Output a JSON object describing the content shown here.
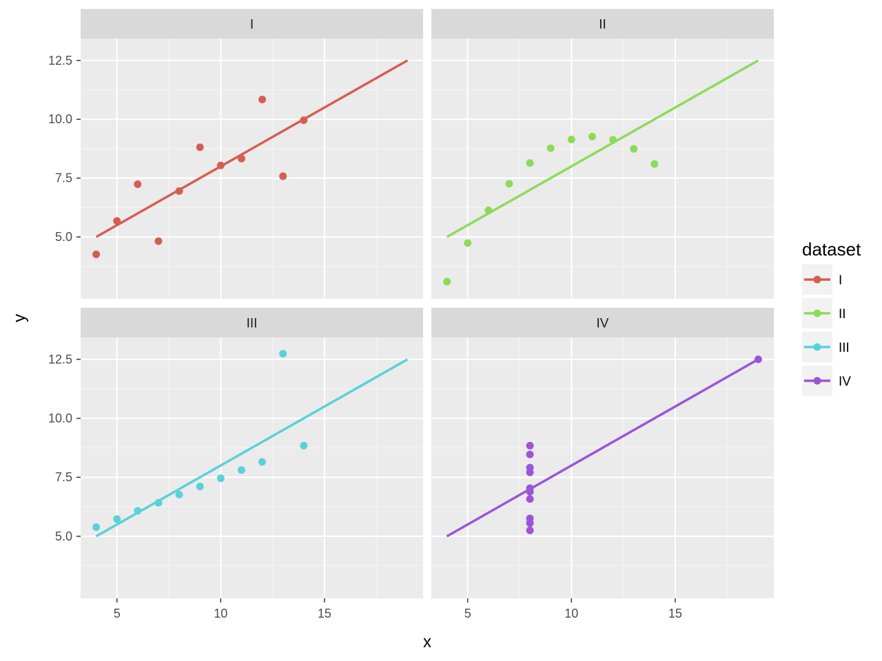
{
  "chart_data": {
    "type": "scatter",
    "facet_layout": "2x2",
    "x_label": "x",
    "y_label": "y",
    "xlim": [
      3.25,
      19.75
    ],
    "ylim": [
      2.37,
      13.43
    ],
    "x_ticks": [
      5,
      10,
      15
    ],
    "x_tick_labels": [
      "5",
      "10",
      "15"
    ],
    "y_ticks": [
      5.0,
      7.5,
      10.0,
      12.5
    ],
    "y_tick_labels": [
      "5.0",
      "7.5",
      "10.0",
      "12.5"
    ],
    "grid": true,
    "legend": {
      "title": "dataset",
      "placement": "right",
      "entries": [
        "I",
        "II",
        "III",
        "IV"
      ]
    },
    "panels": [
      {
        "name": "I",
        "color": "#D55E52",
        "x": [
          10,
          8,
          13,
          9,
          11,
          14,
          6,
          4,
          12,
          7,
          5
        ],
        "y": [
          8.04,
          6.95,
          7.58,
          8.81,
          8.33,
          9.96,
          7.24,
          4.26,
          10.84,
          4.82,
          5.68
        ],
        "fit_line": {
          "x": [
            4,
            19
          ],
          "y": [
            5.0,
            12.5
          ]
        }
      },
      {
        "name": "II",
        "color": "#8CDB58",
        "x": [
          10,
          8,
          13,
          9,
          11,
          14,
          6,
          4,
          12,
          7,
          5
        ],
        "y": [
          9.14,
          8.14,
          8.74,
          8.77,
          9.26,
          8.1,
          6.13,
          3.1,
          9.13,
          7.26,
          4.74
        ],
        "fit_line": {
          "x": [
            4,
            19
          ],
          "y": [
            5.0,
            12.5
          ]
        }
      },
      {
        "name": "III",
        "color": "#59D1D9",
        "x": [
          10,
          8,
          13,
          9,
          11,
          14,
          6,
          4,
          12,
          7,
          5
        ],
        "y": [
          7.46,
          6.77,
          12.74,
          7.11,
          7.81,
          8.84,
          6.08,
          5.39,
          8.15,
          6.42,
          5.73
        ],
        "fit_line": {
          "x": [
            4,
            19
          ],
          "y": [
            5.0,
            12.5
          ]
        }
      },
      {
        "name": "IV",
        "color": "#9B55D6",
        "x": [
          8,
          8,
          8,
          8,
          8,
          8,
          8,
          19,
          8,
          8,
          8
        ],
        "y": [
          6.58,
          5.76,
          7.71,
          8.84,
          8.47,
          7.04,
          5.25,
          12.5,
          5.56,
          7.91,
          6.89
        ],
        "fit_line": {
          "x": [
            4,
            19
          ],
          "y": [
            5.0,
            12.5
          ]
        }
      }
    ]
  }
}
